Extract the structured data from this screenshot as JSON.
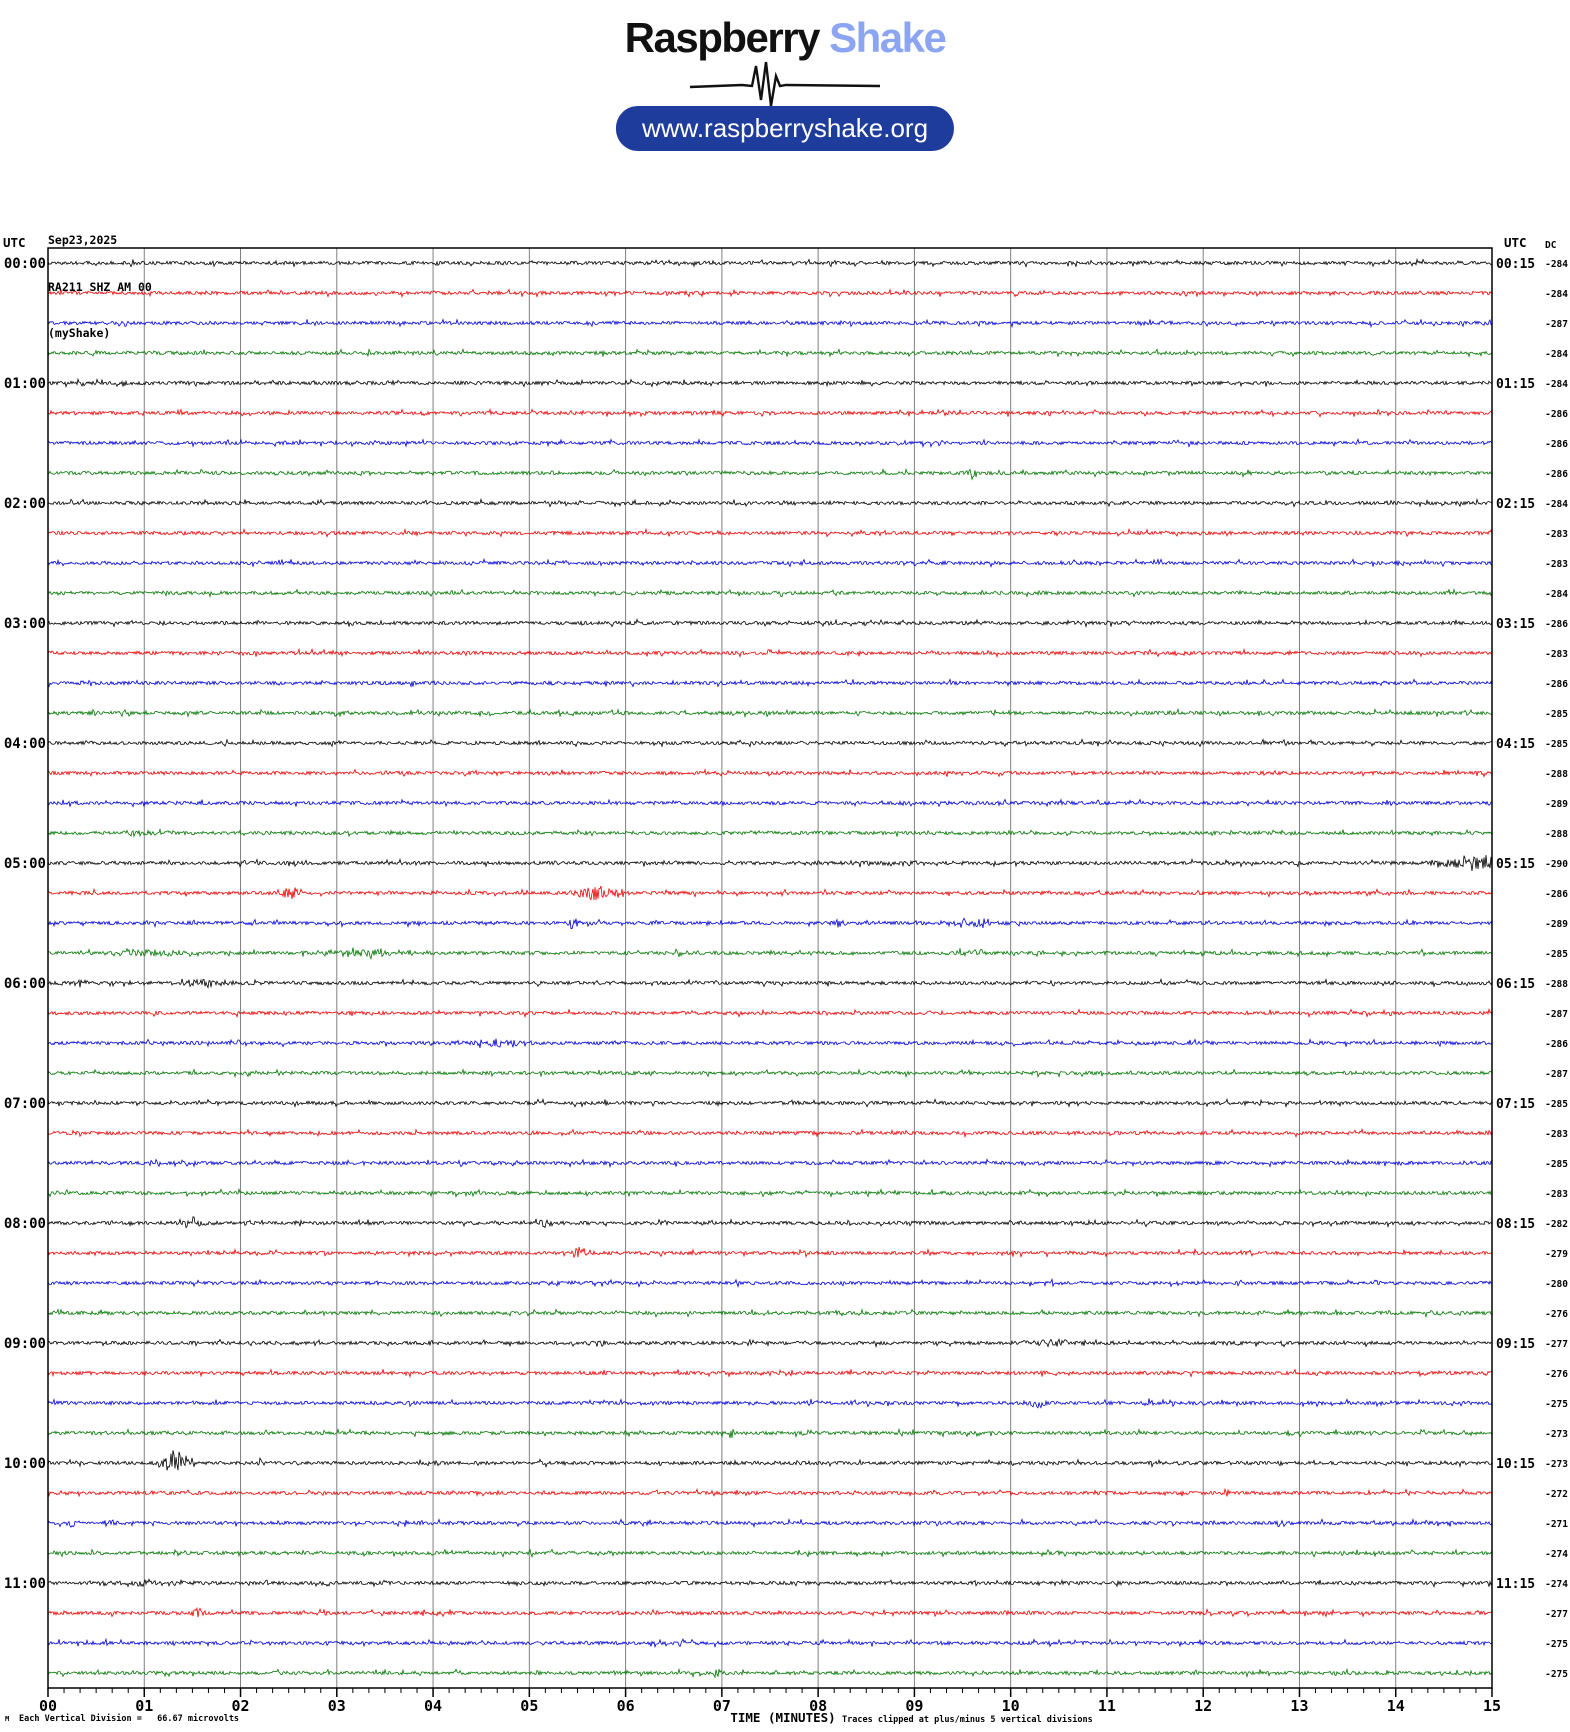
{
  "header": {
    "logo": {
      "primary": "Raspberry",
      "secondary": "Shake",
      "secondary_color": "#8ba5f2"
    },
    "url_button": {
      "label": "www.raspberryshake.org",
      "bg_color": "#1e3c9b",
      "text_color": "#ffffff"
    }
  },
  "station_info": {
    "date": "Sep23,2025",
    "station_line": "RA211 SHZ AM 00",
    "network_line": "(myShake)"
  },
  "chart_data": {
    "type": "line",
    "subtype": "helicorder",
    "title": "RA211 SHZ AM 00 helicorder, Sep23,2025",
    "xlabel": "TIME (MINUTES)",
    "x_range_minutes": [
      0,
      15
    ],
    "x_major_ticks": [
      "00",
      "01",
      "02",
      "03",
      "04",
      "05",
      "06",
      "07",
      "08",
      "09",
      "10",
      "11",
      "12",
      "13",
      "14",
      "15"
    ],
    "x_minor_ticks_per_interval": 5,
    "grid": true,
    "grid_color": "#808080",
    "left_time_header": "UTC",
    "right_time_header": "UTC",
    "dc_column_header": "DC",
    "corner_mark": "M",
    "trace_colors": {
      "black": "#000000",
      "red": "#ee0000",
      "blue": "#0000dd",
      "green": "#007700"
    },
    "rows": [
      {
        "utc_left": "00:00",
        "utc_right": "00:15",
        "color": "black",
        "dc": -284
      },
      {
        "color": "red",
        "dc": -284
      },
      {
        "color": "blue",
        "dc": -287
      },
      {
        "color": "green",
        "dc": -284
      },
      {
        "utc_left": "01:00",
        "utc_right": "01:15",
        "color": "black",
        "dc": -284
      },
      {
        "color": "red",
        "dc": -286
      },
      {
        "color": "blue",
        "dc": -286
      },
      {
        "color": "green",
        "dc": -286
      },
      {
        "utc_left": "02:00",
        "utc_right": "02:15",
        "color": "black",
        "dc": -284
      },
      {
        "color": "red",
        "dc": -283
      },
      {
        "color": "blue",
        "dc": -283
      },
      {
        "color": "green",
        "dc": -284
      },
      {
        "utc_left": "03:00",
        "utc_right": "03:15",
        "color": "black",
        "dc": -286
      },
      {
        "color": "red",
        "dc": -283
      },
      {
        "color": "blue",
        "dc": -286
      },
      {
        "color": "green",
        "dc": -285
      },
      {
        "utc_left": "04:00",
        "utc_right": "04:15",
        "color": "black",
        "dc": -285
      },
      {
        "color": "red",
        "dc": -288
      },
      {
        "color": "blue",
        "dc": -289
      },
      {
        "color": "green",
        "dc": -288
      },
      {
        "utc_left": "05:00",
        "utc_right": "05:15",
        "color": "black",
        "dc": -290
      },
      {
        "color": "red",
        "dc": -286
      },
      {
        "color": "blue",
        "dc": -289
      },
      {
        "color": "green",
        "dc": -285
      },
      {
        "utc_left": "06:00",
        "utc_right": "06:15",
        "color": "black",
        "dc": -288
      },
      {
        "color": "red",
        "dc": -287
      },
      {
        "color": "blue",
        "dc": -286
      },
      {
        "color": "green",
        "dc": -287
      },
      {
        "utc_left": "07:00",
        "utc_right": "07:15",
        "color": "black",
        "dc": -285
      },
      {
        "color": "red",
        "dc": -283
      },
      {
        "color": "blue",
        "dc": -285
      },
      {
        "color": "green",
        "dc": -283
      },
      {
        "utc_left": "08:00",
        "utc_right": "08:15",
        "color": "black",
        "dc": -282
      },
      {
        "color": "red",
        "dc": -279
      },
      {
        "color": "blue",
        "dc": -280
      },
      {
        "color": "green",
        "dc": -276
      },
      {
        "utc_left": "09:00",
        "utc_right": "09:15",
        "color": "black",
        "dc": -277
      },
      {
        "color": "red",
        "dc": -276
      },
      {
        "color": "blue",
        "dc": -275
      },
      {
        "color": "green",
        "dc": -273
      },
      {
        "utc_left": "10:00",
        "utc_right": "10:15",
        "color": "black",
        "dc": -273
      },
      {
        "color": "red",
        "dc": -272
      },
      {
        "color": "blue",
        "dc": -271
      },
      {
        "color": "green",
        "dc": -274
      },
      {
        "utc_left": "11:00",
        "utc_right": "11:15",
        "color": "black",
        "dc": -274
      },
      {
        "color": "red",
        "dc": -277
      },
      {
        "color": "blue",
        "dc": -275
      },
      {
        "color": "green",
        "dc": -275
      }
    ],
    "events": [
      {
        "row": 7,
        "minute": 9.6,
        "amplitude": 5,
        "width_min": 0.06
      },
      {
        "row": 19,
        "minute": 1.0,
        "amplitude": 3.5,
        "width_min": 0.25
      },
      {
        "row": 20,
        "minute": 8.7,
        "amplitude": 2,
        "width_min": 0.8
      },
      {
        "row": 20,
        "minute": 14.4,
        "amplitude": 3,
        "width_min": 0.15
      },
      {
        "row": 20,
        "minute": 14.75,
        "amplitude": 7,
        "width_min": 0.25
      },
      {
        "row": 20,
        "minute": 14.95,
        "amplitude": 9,
        "width_min": 0.06
      },
      {
        "row": 21,
        "minute": 2.5,
        "amplitude": 5,
        "width_min": 0.15
      },
      {
        "row": 21,
        "minute": 5.65,
        "amplitude": 9,
        "width_min": 0.15
      },
      {
        "row": 21,
        "minute": 5.9,
        "amplitude": 4,
        "width_min": 0.1
      },
      {
        "row": 22,
        "minute": 5.45,
        "amplitude": 6,
        "width_min": 0.05
      },
      {
        "row": 22,
        "minute": 8.2,
        "amplitude": 3,
        "width_min": 0.1
      },
      {
        "row": 22,
        "minute": 9.55,
        "amplitude": 4.5,
        "width_min": 0.3
      },
      {
        "row": 23,
        "minute": 1.0,
        "amplitude": 4,
        "width_min": 0.3
      },
      {
        "row": 23,
        "minute": 3.3,
        "amplitude": 4.5,
        "width_min": 0.4
      },
      {
        "row": 23,
        "minute": 6.55,
        "amplitude": 4.5,
        "width_min": 0.06
      },
      {
        "row": 23,
        "minute": 9.6,
        "amplitude": 4,
        "width_min": 0.15
      },
      {
        "row": 24,
        "minute": 0.3,
        "amplitude": 3,
        "width_min": 0.1
      },
      {
        "row": 24,
        "minute": 1.6,
        "amplitude": 4,
        "width_min": 0.3
      },
      {
        "row": 26,
        "minute": 4.7,
        "amplitude": 4,
        "width_min": 0.3
      },
      {
        "row": 32,
        "minute": 1.5,
        "amplitude": 5,
        "width_min": 0.15
      },
      {
        "row": 32,
        "minute": 2.6,
        "amplitude": 3.5,
        "width_min": 0.04
      },
      {
        "row": 32,
        "minute": 5.15,
        "amplitude": 3.5,
        "width_min": 0.1
      },
      {
        "row": 33,
        "minute": 5.5,
        "amplitude": 6,
        "width_min": 0.06
      },
      {
        "row": 36,
        "minute": 5.75,
        "amplitude": 4,
        "width_min": 0.04
      },
      {
        "row": 36,
        "minute": 10.45,
        "amplitude": 4,
        "width_min": 0.3
      },
      {
        "row": 38,
        "minute": 7.95,
        "amplitude": 4,
        "width_min": 0.06
      },
      {
        "row": 38,
        "minute": 10.25,
        "amplitude": 5,
        "width_min": 0.1
      },
      {
        "row": 38,
        "minute": 11.45,
        "amplitude": 3.5,
        "width_min": 0.06
      },
      {
        "row": 39,
        "minute": 7.1,
        "amplitude": 5,
        "width_min": 0.04
      },
      {
        "row": 39,
        "minute": 12.9,
        "amplitude": 4.5,
        "width_min": 0.04
      },
      {
        "row": 40,
        "minute": 1.3,
        "amplitude": 13,
        "width_min": 0.12
      },
      {
        "row": 40,
        "minute": 1.45,
        "amplitude": 8,
        "width_min": 0.08
      },
      {
        "row": 40,
        "minute": 2.2,
        "amplitude": 5,
        "width_min": 0.03
      },
      {
        "row": 42,
        "minute": 0.25,
        "amplitude": 4,
        "width_min": 0.06
      },
      {
        "row": 42,
        "minute": 0.65,
        "amplitude": 3.5,
        "width_min": 0.1
      },
      {
        "row": 42,
        "minute": 12.8,
        "amplitude": 3.5,
        "width_min": 0.06
      },
      {
        "row": 44,
        "minute": 0.9,
        "amplitude": 2.5,
        "width_min": 0.5
      },
      {
        "row": 45,
        "minute": 1.55,
        "amplitude": 5,
        "width_min": 0.06
      },
      {
        "row": 46,
        "minute": 6.6,
        "amplitude": 4,
        "width_min": 0.06
      },
      {
        "row": 47,
        "minute": 6.95,
        "amplitude": 5,
        "width_min": 0.05
      }
    ],
    "footer": {
      "scale_note": "Each Vertical Division =   66.67 microvolts",
      "xlabel": "TIME (MINUTES)",
      "clip_note": "Traces clipped at plus/minus 5 vertical divisions"
    }
  }
}
